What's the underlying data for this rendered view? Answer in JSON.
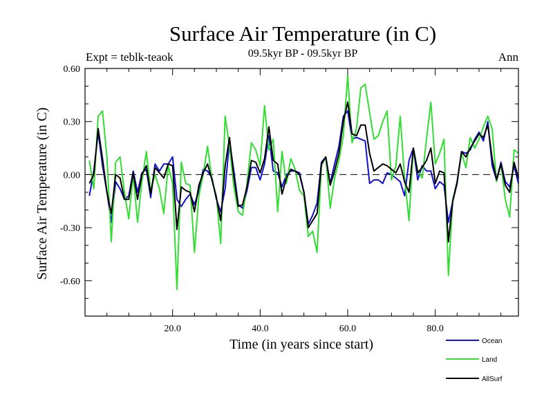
{
  "chart_data": {
    "type": "line",
    "title": "Surface Air Temperature (in C)",
    "subtitle": "09.5kyr BP - 09.5kyr BP",
    "left_label": "Expt = teblk-teaok",
    "right_label": "Ann",
    "xlabel": "Time (in years since start)",
    "ylabel": "Surface Air Temperature (in C)",
    "xlim": [
      0,
      99
    ],
    "ylim": [
      -0.8,
      0.6
    ],
    "x_ticks": [
      20,
      40,
      60,
      80
    ],
    "x_tick_labels": [
      "20.0",
      "40.0",
      "60.0",
      "80.0"
    ],
    "y_ticks": [
      -0.6,
      -0.3,
      0.0,
      0.3,
      0.6
    ],
    "y_tick_labels": [
      "-0.60",
      "-0.30",
      "0.00",
      "0.30",
      "0.60"
    ],
    "zero_line": "dashed",
    "legend_position": "bottom-right",
    "series": [
      {
        "name": "Ocean",
        "color": "#1010d0",
        "values": [
          -0.12,
          0.02,
          0.24,
          0.05,
          -0.1,
          -0.27,
          -0.04,
          -0.08,
          -0.14,
          -0.12,
          0.02,
          -0.1,
          0.01,
          0.03,
          -0.13,
          0.06,
          0.02,
          0.06,
          0.06,
          0.1,
          -0.14,
          -0.18,
          -0.14,
          -0.11,
          -0.17,
          -0.09,
          0.03,
          0.02,
          -0.02,
          -0.14,
          -0.21,
          -0.08,
          0.19,
          0.02,
          -0.17,
          -0.19,
          -0.09,
          0.04,
          0.04,
          -0.03,
          0.06,
          0.22,
          0.02,
          0.01,
          -0.07,
          0.0,
          0.02,
          0.02,
          0.01,
          -0.1,
          -0.28,
          -0.23,
          -0.16,
          0.07,
          0.1,
          -0.05,
          0.06,
          0.16,
          0.33,
          0.36,
          0.2,
          0.21,
          0.2,
          0.19,
          -0.05,
          -0.03,
          -0.03,
          -0.05,
          0.01,
          0.0,
          -0.02,
          -0.04,
          -0.12,
          0.08,
          0.15,
          -0.03,
          0.05,
          0.02,
          0.02,
          -0.08,
          -0.04,
          -0.06,
          -0.27,
          -0.15,
          -0.05,
          0.13,
          0.12,
          0.14,
          0.2,
          0.24,
          0.19,
          0.3,
          0.05,
          -0.03,
          0.07,
          -0.04,
          -0.07,
          0.05,
          -0.05
        ]
      },
      {
        "name": "Land",
        "color": "#33dd33",
        "values": [
          0.08,
          -0.08,
          0.33,
          0.36,
          0.1,
          -0.38,
          0.07,
          0.1,
          -0.1,
          -0.25,
          0.0,
          -0.27,
          -0.04,
          0.13,
          -0.09,
          0.0,
          -0.08,
          -0.22,
          0.05,
          -0.05,
          -0.65,
          0.07,
          -0.05,
          -0.06,
          -0.44,
          -0.12,
          0.0,
          0.16,
          -0.03,
          -0.12,
          -0.39,
          0.33,
          0.16,
          -0.07,
          -0.21,
          -0.23,
          -0.05,
          0.18,
          0.14,
          0.05,
          0.39,
          0.14,
          0.2,
          -0.21,
          0.13,
          -0.05,
          0.09,
          0.03,
          -0.09,
          -0.12,
          -0.35,
          -0.32,
          -0.44,
          0.05,
          0.1,
          -0.19,
          -0.02,
          0.08,
          0.22,
          0.56,
          0.18,
          0.26,
          0.49,
          0.51,
          0.35,
          0.2,
          0.22,
          0.3,
          0.36,
          -0.03,
          0.05,
          0.33,
          -0.02,
          -0.26,
          0.15,
          0.02,
          -0.02,
          0.2,
          0.41,
          0.06,
          0.12,
          0.2,
          -0.57,
          -0.14,
          -0.04,
          0.12,
          0.04,
          0.21,
          0.15,
          0.2,
          0.27,
          0.33,
          0.26,
          -0.04,
          0.06,
          -0.14,
          -0.24,
          0.14,
          0.12
        ]
      },
      {
        "name": "AllSurf",
        "color": "#000000",
        "values": [
          -0.05,
          0.0,
          0.26,
          0.09,
          -0.1,
          -0.22,
          0.0,
          -0.02,
          -0.14,
          -0.14,
          0.01,
          -0.14,
          0.0,
          0.05,
          -0.11,
          0.04,
          0.01,
          -0.02,
          0.06,
          0.05,
          -0.31,
          -0.07,
          -0.09,
          -0.1,
          -0.21,
          -0.06,
          0.01,
          0.06,
          -0.03,
          -0.13,
          -0.26,
          0.05,
          0.21,
          -0.01,
          -0.18,
          -0.17,
          -0.07,
          0.08,
          0.07,
          0.01,
          0.09,
          0.27,
          0.08,
          0.06,
          -0.11,
          -0.02,
          0.03,
          0.02,
          0.0,
          -0.1,
          -0.3,
          -0.26,
          -0.22,
          0.06,
          0.1,
          -0.06,
          0.02,
          0.12,
          0.3,
          0.41,
          0.23,
          0.22,
          0.28,
          0.28,
          0.12,
          0.02,
          0.04,
          0.06,
          0.05,
          0.03,
          0.01,
          0.06,
          -0.04,
          -0.1,
          0.15,
          0.01,
          0.04,
          0.08,
          0.15,
          -0.05,
          0.02,
          0.01,
          -0.38,
          -0.15,
          -0.04,
          0.13,
          0.1,
          0.15,
          0.19,
          0.23,
          0.21,
          0.28,
          0.09,
          -0.03,
          0.06,
          -0.06,
          -0.1,
          0.07,
          -0.02
        ]
      }
    ]
  }
}
